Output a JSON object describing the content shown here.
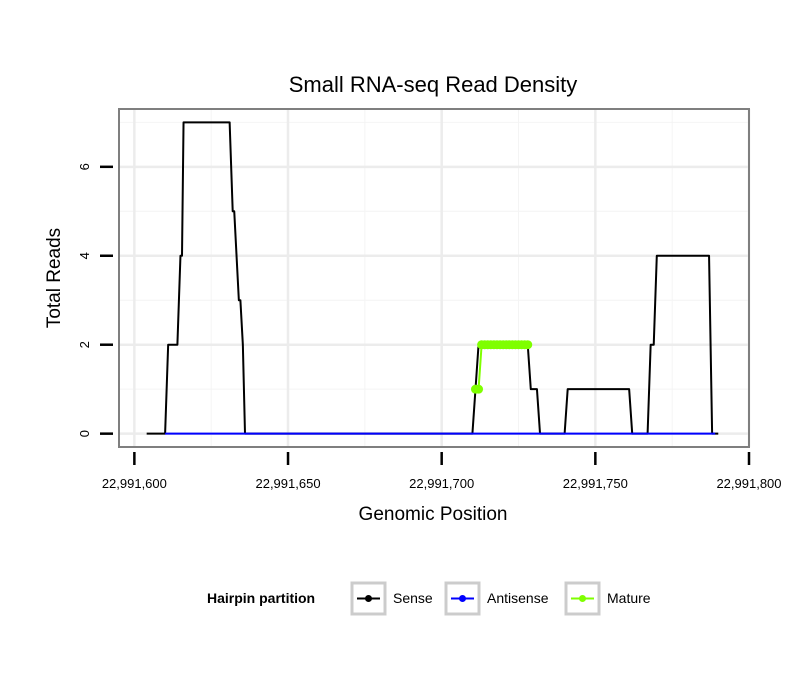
{
  "chart_data": {
    "type": "line",
    "title": "Small RNA-seq Read Density",
    "xlabel": "Genomic Position",
    "ylabel": "Total Reads",
    "xlim": [
      22991595,
      22991800
    ],
    "ylim": [
      -0.3,
      7.3
    ],
    "x_ticks": [
      22991600,
      22991650,
      22991700,
      22991750,
      22991800
    ],
    "x_tick_labels": [
      "22,991,600",
      "22,991,650",
      "22,991,700",
      "22,991,750",
      "22,991,800"
    ],
    "y_ticks": [
      0,
      2,
      4,
      6
    ],
    "y_tick_labels": [
      "0",
      "2",
      "4",
      "6"
    ],
    "grid": true,
    "legend": {
      "title": "Hairpin partition",
      "position": "bottom",
      "entries": [
        {
          "label": "Sense",
          "color": "#000000"
        },
        {
          "label": "Antisense",
          "color": "#0000ff"
        },
        {
          "label": "Mature",
          "color": "#7fff00"
        }
      ]
    },
    "series": [
      {
        "name": "Sense",
        "color": "#000000",
        "style": "line",
        "points": [
          [
            22991604,
            0
          ],
          [
            22991610,
            0
          ],
          [
            22991611,
            2
          ],
          [
            22991614,
            2
          ],
          [
            22991615,
            4
          ],
          [
            22991615.5,
            4
          ],
          [
            22991616,
            7
          ],
          [
            22991631,
            7
          ],
          [
            22991632,
            5
          ],
          [
            22991632.5,
            5
          ],
          [
            22991634,
            3
          ],
          [
            22991634.5,
            3
          ],
          [
            22991635.3,
            2
          ],
          [
            22991636,
            0
          ],
          [
            22991710,
            0
          ],
          [
            22991712,
            2
          ],
          [
            22991728,
            2
          ],
          [
            22991729,
            1
          ],
          [
            22991731,
            1
          ],
          [
            22991732,
            0
          ],
          [
            22991740,
            0
          ],
          [
            22991741,
            1
          ],
          [
            22991761,
            1
          ],
          [
            22991762,
            0
          ],
          [
            22991767,
            0
          ],
          [
            22991768,
            2
          ],
          [
            22991769,
            2
          ],
          [
            22991770,
            4
          ],
          [
            22991787,
            4
          ],
          [
            22991788,
            0
          ],
          [
            22991790,
            0
          ]
        ]
      },
      {
        "name": "Antisense",
        "color": "#0000ff",
        "style": "line",
        "points": [
          [
            22991610,
            0
          ],
          [
            22991789,
            0
          ]
        ]
      },
      {
        "name": "Mature",
        "color": "#7fff00",
        "style": "line+points",
        "points": [
          [
            22991711,
            1
          ],
          [
            22991712,
            1
          ],
          [
            22991713,
            2
          ],
          [
            22991714,
            2
          ],
          [
            22991715,
            2
          ],
          [
            22991716,
            2
          ],
          [
            22991717,
            2
          ],
          [
            22991718,
            2
          ],
          [
            22991719,
            2
          ],
          [
            22991720,
            2
          ],
          [
            22991721,
            2
          ],
          [
            22991722,
            2
          ],
          [
            22991723,
            2
          ],
          [
            22991724,
            2
          ],
          [
            22991725,
            2
          ],
          [
            22991726,
            2
          ],
          [
            22991727,
            2
          ],
          [
            22991728,
            2
          ]
        ]
      }
    ]
  }
}
